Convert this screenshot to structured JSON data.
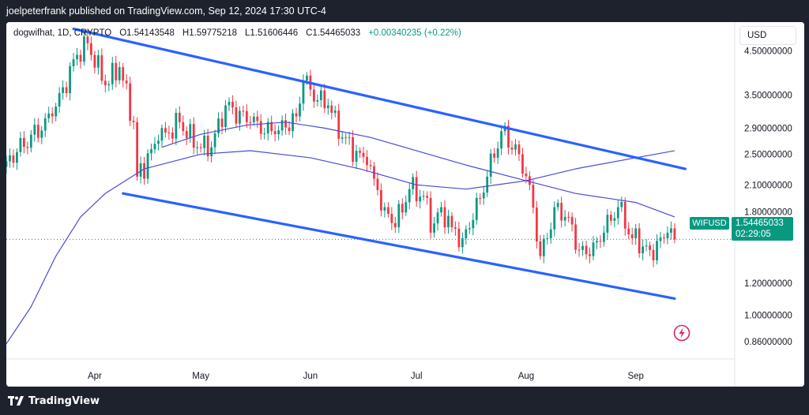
{
  "header": {
    "published": "joelpeterfrank published on TradingView.com, Sep 12, 2024 17:30 UTC-4"
  },
  "legend": {
    "symbol": "dogwifhat, 1D, CRYPTO",
    "open": "O1.54143548",
    "high": "H1.59775218",
    "low": "L1.51606446",
    "close": "C1.54465033",
    "change": "+0.00340235 (+0.22%)"
  },
  "currency": "USD",
  "price_tag": {
    "symbol": "WIFUSD",
    "price": "1.54465033",
    "countdown": "02:29:05"
  },
  "footer": {
    "brand": "TradingView"
  },
  "colors": {
    "up": "#089981",
    "down": "#f23645",
    "trendline": "#2962ff",
    "moving_average": "#4a4ad9",
    "background": "#ffffff"
  },
  "icons": {
    "brand": "tradingview-logo-icon",
    "bolt": "lightning-icon"
  },
  "chart_data": {
    "type": "candlestick",
    "title": "dogwifhat, 1D, CRYPTO",
    "scale": "log",
    "ylim": [
      0.78,
      5.3
    ],
    "y_ticks": [
      "4.50000000",
      "3.50000000",
      "2.90000000",
      "2.50000000",
      "2.10000000",
      "1.80000000",
      "1.20000000",
      "1.00000000",
      "0.86000000"
    ],
    "y_tick_values": [
      4.5,
      3.5,
      2.9,
      2.5,
      2.1,
      1.8,
      1.2,
      1.0,
      0.86
    ],
    "x_ticks": [
      "Apr",
      "May",
      "Jun",
      "Jul",
      "Aug",
      "Sep"
    ],
    "x_tick_dates": [
      "2024-04-01",
      "2024-05-01",
      "2024-06-01",
      "2024-07-01",
      "2024-08-01",
      "2024-09-01"
    ],
    "x_range": [
      "2024-03-07",
      "2024-09-29"
    ],
    "closes": [
      {
        "date": "2024-03-07",
        "close": 2.4
      },
      {
        "date": "2024-03-20",
        "close": 3.1
      },
      {
        "date": "2024-03-27",
        "close": 4.4
      },
      {
        "date": "2024-03-30",
        "close": 4.7
      },
      {
        "date": "2024-04-04",
        "close": 3.7
      },
      {
        "date": "2024-04-08",
        "close": 4.1
      },
      {
        "date": "2024-04-12",
        "close": 3.0
      },
      {
        "date": "2024-04-13",
        "close": 2.2
      },
      {
        "date": "2024-04-19",
        "close": 2.7
      },
      {
        "date": "2024-04-25",
        "close": 3.0
      },
      {
        "date": "2024-04-30",
        "close": 2.6
      },
      {
        "date": "2024-05-04",
        "close": 2.6
      },
      {
        "date": "2024-05-08",
        "close": 3.3
      },
      {
        "date": "2024-05-15",
        "close": 3.0
      },
      {
        "date": "2024-05-22",
        "close": 2.8
      },
      {
        "date": "2024-05-28",
        "close": 3.1
      },
      {
        "date": "2024-05-30",
        "close": 3.8
      },
      {
        "date": "2024-06-03",
        "close": 3.4
      },
      {
        "date": "2024-06-06",
        "close": 3.3
      },
      {
        "date": "2024-06-10",
        "close": 2.75
      },
      {
        "date": "2024-06-17",
        "close": 2.35
      },
      {
        "date": "2024-06-22",
        "close": 1.85
      },
      {
        "date": "2024-06-25",
        "close": 1.65
      },
      {
        "date": "2024-06-29",
        "close": 2.05
      },
      {
        "date": "2024-07-04",
        "close": 1.95
      },
      {
        "date": "2024-07-05",
        "close": 1.6
      },
      {
        "date": "2024-07-08",
        "close": 1.85
      },
      {
        "date": "2024-07-11",
        "close": 1.65
      },
      {
        "date": "2024-07-14",
        "close": 1.55
      },
      {
        "date": "2024-07-17",
        "close": 1.72
      },
      {
        "date": "2024-07-21",
        "close": 2.2
      },
      {
        "date": "2024-07-25",
        "close": 2.85
      },
      {
        "date": "2024-07-30",
        "close": 2.5
      },
      {
        "date": "2024-08-02",
        "close": 2.1
      },
      {
        "date": "2024-08-05",
        "close": 1.4
      },
      {
        "date": "2024-08-07",
        "close": 1.55
      },
      {
        "date": "2024-08-09",
        "close": 1.85
      },
      {
        "date": "2024-08-13",
        "close": 1.75
      },
      {
        "date": "2024-08-16",
        "close": 1.45
      },
      {
        "date": "2024-08-19",
        "close": 1.4
      },
      {
        "date": "2024-08-23",
        "close": 1.6
      },
      {
        "date": "2024-08-27",
        "close": 1.85
      },
      {
        "date": "2024-08-31",
        "close": 1.55
      },
      {
        "date": "2024-09-05",
        "close": 1.45
      },
      {
        "date": "2024-09-09",
        "close": 1.55
      },
      {
        "date": "2024-09-10",
        "close": 1.6
      },
      {
        "date": "2024-09-12",
        "close": 1.54
      }
    ],
    "moving_average_short": [
      {
        "date": "2024-04-20",
        "value": 2.6
      },
      {
        "date": "2024-05-01",
        "value": 2.8
      },
      {
        "date": "2024-05-14",
        "value": 2.95
      },
      {
        "date": "2024-05-25",
        "value": 3.0
      },
      {
        "date": "2024-06-05",
        "value": 2.9
      },
      {
        "date": "2024-06-18",
        "value": 2.75
      },
      {
        "date": "2024-07-01",
        "value": 2.55
      },
      {
        "date": "2024-07-15",
        "value": 2.35
      },
      {
        "date": "2024-08-01",
        "value": 2.15
      },
      {
        "date": "2024-08-15",
        "value": 2.0
      },
      {
        "date": "2024-09-01",
        "value": 1.9
      },
      {
        "date": "2024-09-12",
        "value": 1.75
      }
    ],
    "moving_average_long": [
      {
        "date": "2024-03-07",
        "value": 0.85
      },
      {
        "date": "2024-03-14",
        "value": 1.05
      },
      {
        "date": "2024-03-21",
        "value": 1.4
      },
      {
        "date": "2024-03-28",
        "value": 1.75
      },
      {
        "date": "2024-04-04",
        "value": 2.0
      },
      {
        "date": "2024-04-15",
        "value": 2.3
      },
      {
        "date": "2024-05-01",
        "value": 2.5
      },
      {
        "date": "2024-05-15",
        "value": 2.55
      },
      {
        "date": "2024-06-01",
        "value": 2.45
      },
      {
        "date": "2024-06-15",
        "value": 2.3
      },
      {
        "date": "2024-07-01",
        "value": 2.1
      },
      {
        "date": "2024-07-15",
        "value": 2.05
      },
      {
        "date": "2024-08-01",
        "value": 2.15
      },
      {
        "date": "2024-08-15",
        "value": 2.3
      },
      {
        "date": "2024-09-01",
        "value": 2.45
      },
      {
        "date": "2024-09-12",
        "value": 2.55
      }
    ],
    "trendlines": [
      {
        "name": "upper-channel",
        "from": {
          "date": "2024-03-26",
          "value": 5.1
        },
        "to": {
          "date": "2024-09-15",
          "value": 2.3
        }
      },
      {
        "name": "lower-channel",
        "from": {
          "date": "2024-04-09",
          "value": 2.0
        },
        "to": {
          "date": "2024-09-12",
          "value": 1.1
        }
      }
    ]
  }
}
